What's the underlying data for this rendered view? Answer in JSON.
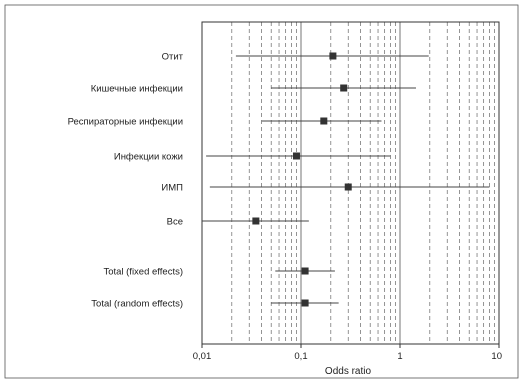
{
  "chart_data": {
    "type": "forest",
    "xlabel": "Odds ratio",
    "x_scale": "log",
    "xlim": [
      0.01,
      10
    ],
    "x_ticks": [
      {
        "value": 0.01,
        "label": "0,01"
      },
      {
        "value": 0.1,
        "label": "0,1"
      },
      {
        "value": 1,
        "label": "1"
      },
      {
        "value": 10,
        "label": "10"
      }
    ],
    "grid": "dashed vertical lines at 2–9 of each decade; solid lines at 0.1, 1, 10",
    "rows": [
      {
        "label": "Отит",
        "estimate": 0.21,
        "lower": 0.022,
        "upper": 1.95
      },
      {
        "label": "Кишечные инфекции",
        "estimate": 0.27,
        "lower": 0.05,
        "upper": 1.45
      },
      {
        "label": "Респираторные инфекции",
        "estimate": 0.17,
        "lower": 0.04,
        "upper": 0.65
      },
      {
        "label": "Инфекции кожи",
        "estimate": 0.09,
        "lower": 0.011,
        "upper": 0.8
      },
      {
        "label": "ИМП",
        "estimate": 0.3,
        "lower": 0.012,
        "upper": 8.0
      },
      {
        "label": "Все",
        "estimate": 0.035,
        "lower": 0.01,
        "upper": 0.12
      },
      {
        "label": "Total (fixed effects)",
        "estimate": 0.11,
        "lower": 0.055,
        "upper": 0.22
      },
      {
        "label": "Total (random effects)",
        "estimate": 0.11,
        "lower": 0.05,
        "upper": 0.24
      }
    ],
    "colors": {
      "marker": "#333333",
      "ci_line": "#444444",
      "grid": "#666666",
      "frame": "#555555"
    }
  }
}
